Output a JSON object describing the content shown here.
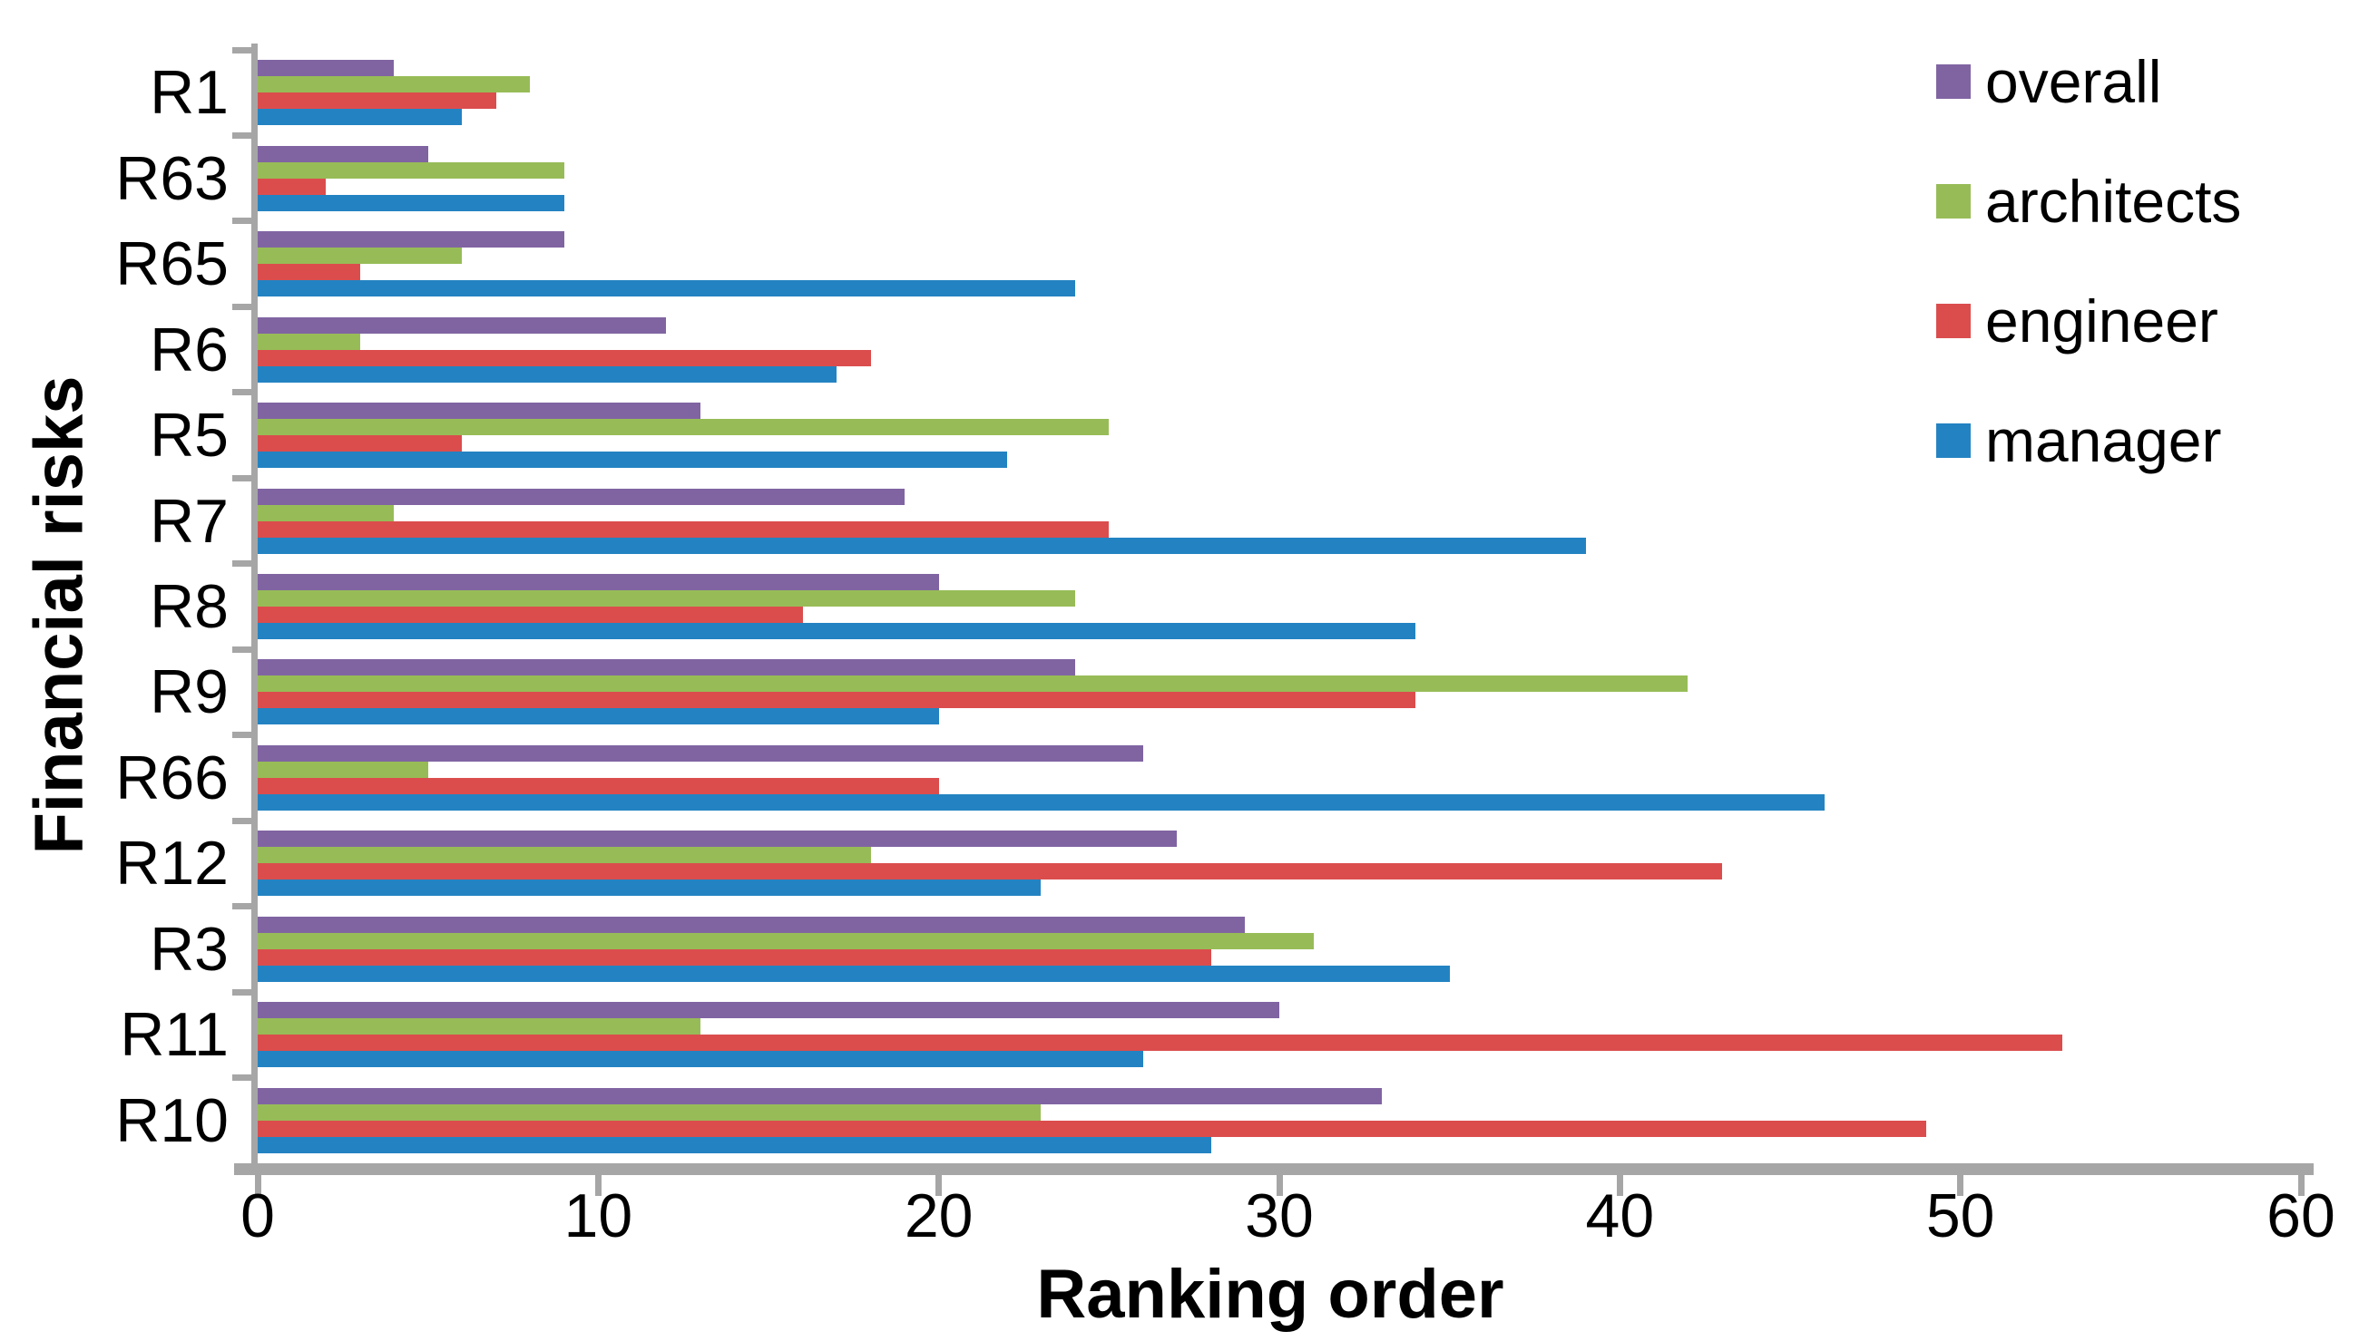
{
  "chart_data": {
    "type": "bar",
    "orientation": "horizontal",
    "title": "",
    "xlabel": "Ranking order",
    "ylabel": "Financial risks",
    "xlim": [
      0,
      60
    ],
    "xticks": [
      0,
      10,
      20,
      30,
      40,
      50,
      60
    ],
    "grid": false,
    "legend_position": "top-right",
    "axis_color": "#a6a6a6",
    "background": "#ffffff",
    "categories": [
      "R1",
      "R63",
      "R65",
      "R6",
      "R5",
      "R7",
      "R8",
      "R9",
      "R66",
      "R12",
      "R3",
      "R11",
      "R10"
    ],
    "series": [
      {
        "name": "overall",
        "color": "#8064a2",
        "values": [
          4,
          5,
          9,
          12,
          13,
          19,
          20,
          24,
          26,
          27,
          29,
          30,
          33
        ]
      },
      {
        "name": "architects",
        "color": "#97bc57",
        "values": [
          8,
          9,
          6,
          3,
          25,
          4,
          24,
          42,
          5,
          18,
          31,
          13,
          23
        ]
      },
      {
        "name": "engineer",
        "color": "#db4d4d",
        "values": [
          7,
          2,
          3,
          18,
          6,
          25,
          16,
          34,
          20,
          43,
          28,
          53,
          49
        ]
      },
      {
        "name": "manager",
        "color": "#2383c2",
        "values": [
          6,
          9,
          24,
          17,
          22,
          39,
          34,
          20,
          46,
          23,
          35,
          26,
          28
        ]
      }
    ]
  }
}
